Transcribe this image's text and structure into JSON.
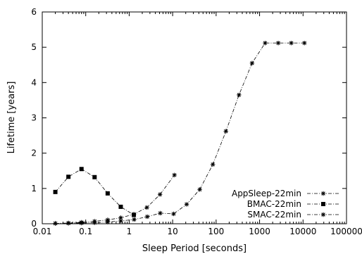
{
  "chart_data": {
    "type": "line",
    "title": "",
    "xlabel": "Sleep Period [seconds]",
    "ylabel": "Lifetime [years]",
    "xscale": "log",
    "xlim": [
      0.01,
      100000
    ],
    "ylim": [
      0,
      6
    ],
    "xticks": [
      {
        "value": 0.01,
        "label": "0.01"
      },
      {
        "value": 0.1,
        "label": "0.1"
      },
      {
        "value": 1,
        "label": "1"
      },
      {
        "value": 10,
        "label": "10"
      },
      {
        "value": 100,
        "label": "100"
      },
      {
        "value": 1000,
        "label": "1000"
      },
      {
        "value": 10000,
        "label": "10000"
      },
      {
        "value": 100000,
        "label": "100000"
      }
    ],
    "yticks": [
      {
        "value": 0,
        "label": "0"
      },
      {
        "value": 1,
        "label": "1"
      },
      {
        "value": 2,
        "label": "2"
      },
      {
        "value": 3,
        "label": "3"
      },
      {
        "value": 4,
        "label": "4"
      },
      {
        "value": 5,
        "label": "5"
      },
      {
        "value": 6,
        "label": "6"
      }
    ],
    "grid": false,
    "legend_position": "bottom-right",
    "series": [
      {
        "name": "AppSleep-22min",
        "marker": "star",
        "points": [
          {
            "x": 0.02,
            "y": 0.01
          },
          {
            "x": 0.04,
            "y": 0.015
          },
          {
            "x": 0.08,
            "y": 0.02
          },
          {
            "x": 0.16,
            "y": 0.03
          },
          {
            "x": 0.32,
            "y": 0.05
          },
          {
            "x": 0.64,
            "y": 0.08
          },
          {
            "x": 1.3,
            "y": 0.12
          },
          {
            "x": 2.6,
            "y": 0.2
          },
          {
            "x": 5.2,
            "y": 0.3
          },
          {
            "x": 10.5,
            "y": 0.28
          },
          {
            "x": 21,
            "y": 0.55
          },
          {
            "x": 42,
            "y": 0.97
          },
          {
            "x": 84,
            "y": 1.68
          },
          {
            "x": 168,
            "y": 2.62
          },
          {
            "x": 336,
            "y": 3.65
          },
          {
            "x": 672,
            "y": 4.55
          },
          {
            "x": 1344,
            "y": 5.12
          },
          {
            "x": 2688,
            "y": 5.12
          },
          {
            "x": 5376,
            "y": 5.12
          },
          {
            "x": 10752,
            "y": 5.12
          }
        ]
      },
      {
        "name": "BMAC-22min",
        "marker": "square",
        "points": [
          {
            "x": 0.02,
            "y": 0.9
          },
          {
            "x": 0.04,
            "y": 1.33
          },
          {
            "x": 0.08,
            "y": 1.55
          },
          {
            "x": 0.16,
            "y": 1.32
          },
          {
            "x": 0.32,
            "y": 0.86
          },
          {
            "x": 0.64,
            "y": 0.48
          },
          {
            "x": 1.28,
            "y": 0.25
          }
        ]
      },
      {
        "name": "SMAC-22min",
        "marker": "star",
        "points": [
          {
            "x": 0.02,
            "y": 0.01
          },
          {
            "x": 0.04,
            "y": 0.02
          },
          {
            "x": 0.08,
            "y": 0.04
          },
          {
            "x": 0.16,
            "y": 0.07
          },
          {
            "x": 0.32,
            "y": 0.11
          },
          {
            "x": 0.64,
            "y": 0.17
          },
          {
            "x": 1.28,
            "y": 0.27
          },
          {
            "x": 2.56,
            "y": 0.46
          },
          {
            "x": 5.12,
            "y": 0.83
          },
          {
            "x": 11,
            "y": 1.38
          }
        ]
      }
    ]
  }
}
